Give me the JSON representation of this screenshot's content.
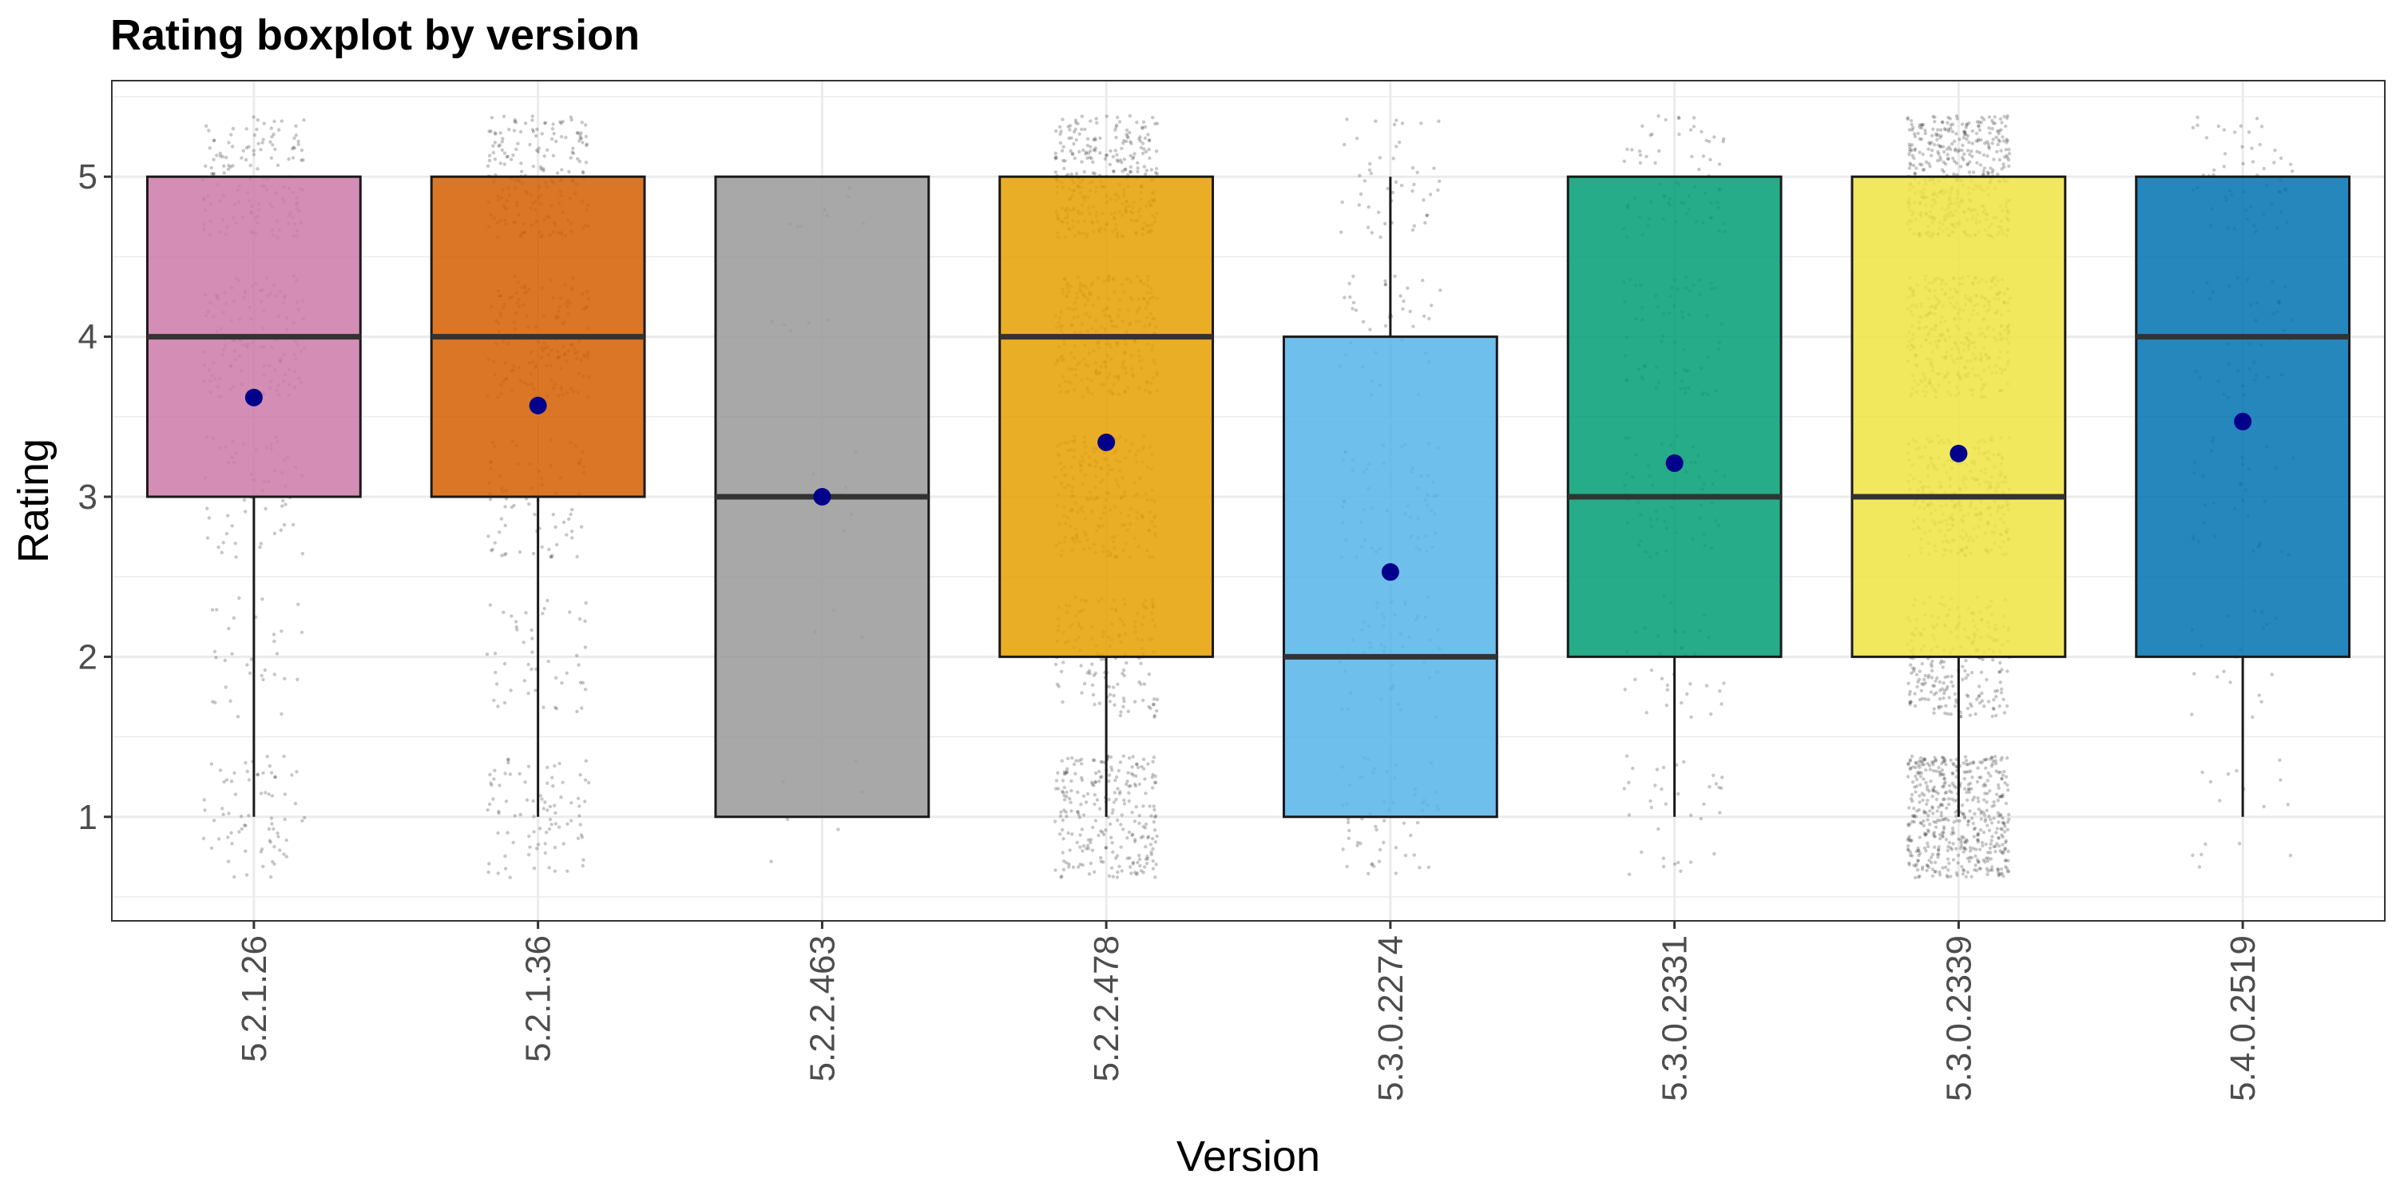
{
  "chart_data": {
    "type": "boxplot",
    "title": "Rating boxplot by version",
    "xlabel": "Version",
    "ylabel": "Rating",
    "ylim": [
      0.35,
      5.6
    ],
    "yticks": [
      1,
      2,
      3,
      4,
      5
    ],
    "grid": true,
    "legend": "none",
    "jitter_color": "#000000",
    "mean_color": "#00008B",
    "categories": [
      "5.2.1.26",
      "5.2.1.36",
      "5.2.2.463",
      "5.2.2.478",
      "5.3.0.2274",
      "5.3.0.2331",
      "5.3.0.2339",
      "5.4.0.2519"
    ],
    "boxes": [
      {
        "version": "5.2.1.26",
        "min": 1,
        "q1": 3,
        "median": 4,
        "q3": 5,
        "max": 5,
        "mean": 3.62,
        "color": "#CC79A7",
        "density": [
          0.45,
          0.2,
          0.35,
          0.8,
          0.9
        ]
      },
      {
        "version": "5.2.1.36",
        "min": 1,
        "q1": 3,
        "median": 4,
        "q3": 5,
        "max": 5,
        "mean": 3.57,
        "color": "#D55E00",
        "density": [
          0.55,
          0.3,
          0.45,
          0.9,
          1.2
        ]
      },
      {
        "version": "5.2.2.463",
        "min": 1,
        "q1": 1,
        "median": 3,
        "q3": 5,
        "max": 5,
        "mean": 3.0,
        "color": "#999999",
        "density": [
          0.04,
          0.02,
          0.04,
          0.03,
          0.05
        ]
      },
      {
        "version": "5.2.2.478",
        "min": 1,
        "q1": 2,
        "median": 4,
        "q3": 5,
        "max": 5,
        "mean": 3.34,
        "color": "#E69F00",
        "density": [
          1.6,
          0.9,
          1.3,
          1.6,
          2.0
        ]
      },
      {
        "version": "5.3.0.2274",
        "min": 1,
        "q1": 1,
        "median": 2,
        "q3": 4,
        "max": 5,
        "mean": 2.53,
        "color": "#56B4E9",
        "density": [
          0.35,
          0.3,
          0.35,
          0.25,
          0.3
        ]
      },
      {
        "version": "5.3.0.2331",
        "min": 1,
        "q1": 2,
        "median": 3,
        "q3": 5,
        "max": 5,
        "mean": 3.21,
        "color": "#009E73",
        "density": [
          0.22,
          0.22,
          0.35,
          0.4,
          0.45
        ]
      },
      {
        "version": "5.3.0.2339",
        "min": 1,
        "q1": 2,
        "median": 3,
        "q3": 5,
        "max": 5,
        "mean": 3.27,
        "color": "#F0E442",
        "density": [
          3.2,
          1.5,
          1.8,
          2.2,
          2.8
        ]
      },
      {
        "version": "5.4.0.2519",
        "min": 1,
        "q1": 2,
        "median": 4,
        "q3": 5,
        "max": 5,
        "mean": 3.47,
        "color": "#0072B2",
        "density": [
          0.1,
          0.12,
          0.2,
          0.25,
          0.35
        ]
      }
    ]
  }
}
